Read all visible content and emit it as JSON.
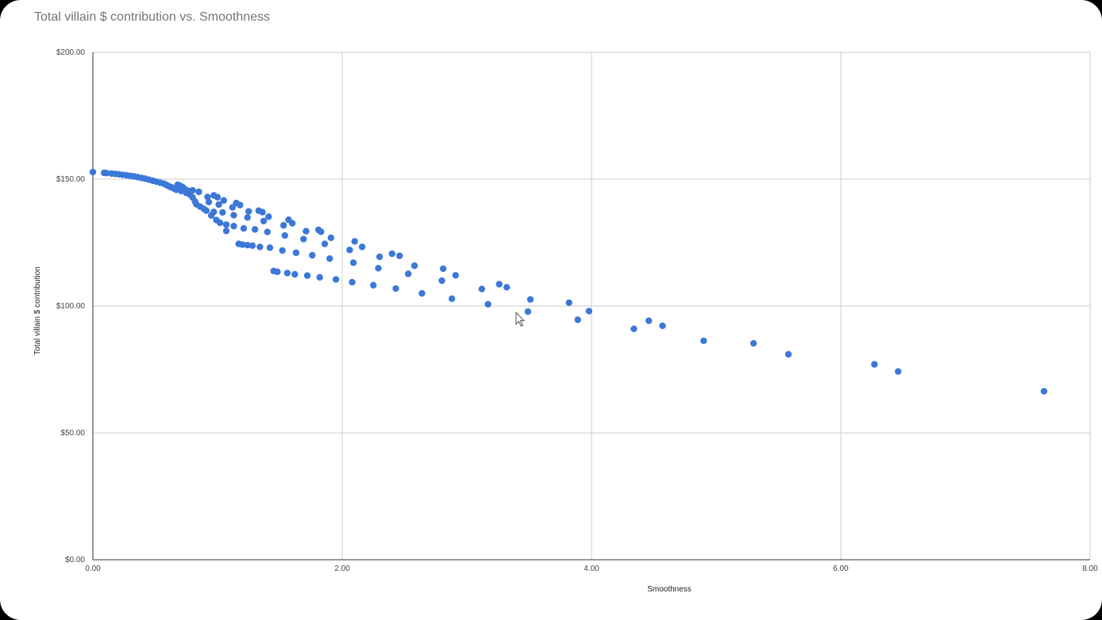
{
  "chart_data": {
    "type": "scatter",
    "title": "Total villain $ contribution vs. Smoothness",
    "xlabel": "Smoothness",
    "ylabel": "Total villain $ contribution",
    "xlim": [
      0,
      8
    ],
    "ylim": [
      0,
      200
    ],
    "x_ticks": [
      "0.00",
      "2.00",
      "4.00",
      "6.00",
      "8.00"
    ],
    "y_ticks": [
      "$0.00",
      "$50.00",
      "$100.00",
      "$150.00",
      "$200.00"
    ],
    "grid": true,
    "legend": "none",
    "point_color": "#3c78d8",
    "points": [
      [
        0.0,
        152.8
      ],
      [
        0.09,
        152.5
      ],
      [
        0.11,
        152.4
      ],
      [
        0.15,
        152.2
      ],
      [
        0.18,
        152.1
      ],
      [
        0.21,
        151.9
      ],
      [
        0.24,
        151.7
      ],
      [
        0.27,
        151.5
      ],
      [
        0.3,
        151.3
      ],
      [
        0.33,
        151.1
      ],
      [
        0.36,
        150.8
      ],
      [
        0.39,
        150.5
      ],
      [
        0.42,
        150.2
      ],
      [
        0.45,
        149.8
      ],
      [
        0.48,
        149.4
      ],
      [
        0.51,
        149.0
      ],
      [
        0.54,
        148.6
      ],
      [
        0.57,
        148.2
      ],
      [
        0.59,
        147.7
      ],
      [
        0.61,
        147.2
      ],
      [
        0.63,
        146.8
      ],
      [
        0.65,
        146.3
      ],
      [
        0.67,
        145.8
      ],
      [
        0.68,
        147.8
      ],
      [
        0.7,
        147.4
      ],
      [
        0.71,
        145.3
      ],
      [
        0.72,
        146.9
      ],
      [
        0.74,
        146.0
      ],
      [
        0.75,
        144.6
      ],
      [
        0.76,
        145.5
      ],
      [
        0.78,
        143.9
      ],
      [
        0.8,
        142.8
      ],
      [
        0.8,
        145.6
      ],
      [
        0.82,
        141.2
      ],
      [
        0.83,
        140.1
      ],
      [
        0.85,
        145.0
      ],
      [
        0.86,
        139.2
      ],
      [
        0.89,
        138.3
      ],
      [
        0.91,
        137.6
      ],
      [
        0.92,
        143.0
      ],
      [
        0.93,
        141.0
      ],
      [
        0.95,
        135.7
      ],
      [
        0.97,
        137.1
      ],
      [
        0.97,
        143.6
      ],
      [
        0.99,
        133.9
      ],
      [
        1.0,
        142.9
      ],
      [
        1.01,
        140.0
      ],
      [
        1.02,
        132.8
      ],
      [
        1.04,
        136.9
      ],
      [
        1.05,
        141.6
      ],
      [
        1.07,
        129.6
      ],
      [
        1.07,
        132.1
      ],
      [
        1.12,
        138.9
      ],
      [
        1.13,
        135.8
      ],
      [
        1.13,
        131.5
      ],
      [
        1.15,
        140.6
      ],
      [
        1.18,
        139.8
      ],
      [
        1.17,
        124.5
      ],
      [
        1.2,
        124.2
      ],
      [
        1.21,
        130.6
      ],
      [
        1.24,
        134.9
      ],
      [
        1.24,
        124.0
      ],
      [
        1.25,
        137.3
      ],
      [
        1.28,
        123.8
      ],
      [
        1.3,
        130.2
      ],
      [
        1.33,
        137.6
      ],
      [
        1.34,
        123.3
      ],
      [
        1.36,
        137.0
      ],
      [
        1.37,
        133.5
      ],
      [
        1.4,
        129.2
      ],
      [
        1.41,
        135.2
      ],
      [
        1.42,
        123.0
      ],
      [
        1.45,
        113.8
      ],
      [
        1.48,
        113.5
      ],
      [
        1.52,
        121.9
      ],
      [
        1.53,
        131.8
      ],
      [
        1.54,
        127.8
      ],
      [
        1.56,
        113.0
      ],
      [
        1.57,
        134.0
      ],
      [
        1.6,
        132.6
      ],
      [
        1.62,
        112.5
      ],
      [
        1.63,
        121.0
      ],
      [
        1.69,
        126.4
      ],
      [
        1.71,
        129.5
      ],
      [
        1.72,
        112.0
      ],
      [
        1.76,
        120.0
      ],
      [
        1.81,
        130.0
      ],
      [
        1.82,
        111.3
      ],
      [
        1.83,
        129.3
      ],
      [
        1.86,
        124.5
      ],
      [
        1.9,
        118.7
      ],
      [
        1.91,
        126.9
      ],
      [
        1.95,
        110.5
      ],
      [
        2.06,
        122.1
      ],
      [
        2.08,
        109.4
      ],
      [
        2.09,
        117.1
      ],
      [
        2.1,
        125.5
      ],
      [
        2.16,
        123.3
      ],
      [
        2.25,
        108.2
      ],
      [
        2.29,
        114.9
      ],
      [
        2.3,
        119.4
      ],
      [
        2.4,
        120.6
      ],
      [
        2.43,
        106.9
      ],
      [
        2.46,
        119.8
      ],
      [
        2.53,
        112.7
      ],
      [
        2.58,
        115.9
      ],
      [
        2.64,
        105.0
      ],
      [
        2.8,
        110.0
      ],
      [
        2.81,
        114.7
      ],
      [
        2.88,
        102.9
      ],
      [
        2.91,
        112.1
      ],
      [
        3.12,
        106.7
      ],
      [
        3.17,
        100.7
      ],
      [
        3.26,
        108.6
      ],
      [
        3.32,
        107.4
      ],
      [
        3.49,
        97.8
      ],
      [
        3.51,
        102.6
      ],
      [
        3.82,
        101.3
      ],
      [
        3.89,
        94.6
      ],
      [
        3.98,
        98.0
      ],
      [
        4.34,
        91.0
      ],
      [
        4.46,
        94.2
      ],
      [
        4.57,
        92.2
      ],
      [
        4.9,
        86.3
      ],
      [
        5.3,
        85.3
      ],
      [
        5.58,
        81.0
      ],
      [
        6.27,
        77.0
      ],
      [
        6.46,
        74.2
      ],
      [
        7.63,
        66.4
      ]
    ]
  }
}
